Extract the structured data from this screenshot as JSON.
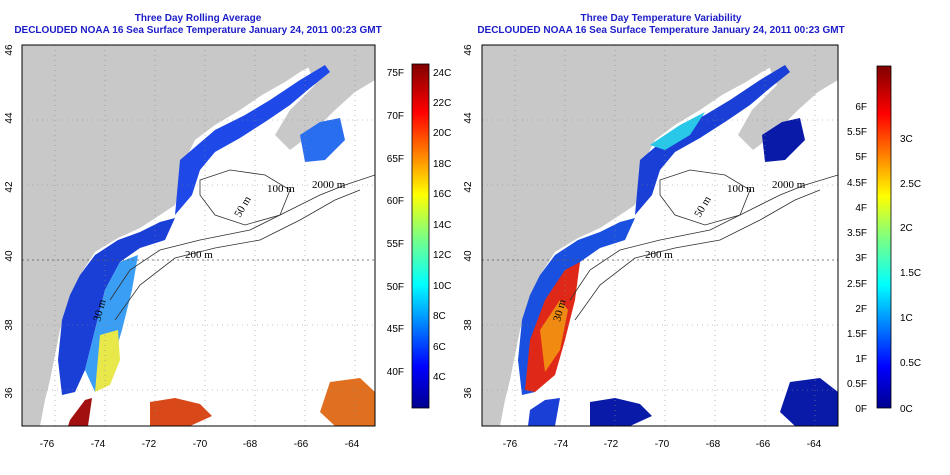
{
  "panels": [
    {
      "title": "Three Day Rolling Average",
      "subtitle": "DECLOUDED NOAA 16 Sea Surface Temperature January 24, 2011 00:23 GMT",
      "x_ticks": [
        "-76",
        "-74",
        "-72",
        "-70",
        "-68",
        "-66",
        "-64"
      ],
      "y_ticks": [
        "36",
        "38",
        "40",
        "42",
        "44",
        "46"
      ],
      "contour_labels": [
        "30 m",
        "100 m",
        "200 m",
        "2000 m",
        "50 m"
      ],
      "colorbar": {
        "left_labels": [
          "75F",
          "70F",
          "65F",
          "60F",
          "55F",
          "50F",
          "45F",
          "40F"
        ],
        "right_labels": [
          "24C",
          "22C",
          "20C",
          "18C",
          "16C",
          "14C",
          "12C",
          "10C",
          "8C",
          "6C",
          "4C"
        ]
      }
    },
    {
      "title": "Three Day Temperature Variability",
      "subtitle": "DECLOUDED NOAA 16 Sea Surface Temperature January 24, 2011 00:23 GMT",
      "x_ticks": [
        "-76",
        "-74",
        "-72",
        "-70",
        "-68",
        "-66",
        "-64"
      ],
      "y_ticks": [
        "36",
        "38",
        "40",
        "42",
        "44",
        "46"
      ],
      "contour_labels": [
        "30 m",
        "100 m",
        "200 m",
        "2000 m",
        "50 m"
      ],
      "colorbar": {
        "left_labels": [
          "6F",
          "5.5F",
          "5F",
          "4.5F",
          "4F",
          "3.5F",
          "3F",
          "2.5F",
          "2F",
          "1.5F",
          "1F",
          "0.5F",
          "0F"
        ],
        "right_labels": [
          "3C",
          "2.5C",
          "2C",
          "1.5C",
          "1C",
          "0.5C",
          "0C"
        ]
      }
    }
  ],
  "colors": {
    "title": "#1c1cc8",
    "land": "#c8c8c8",
    "ocean": "#ffffff"
  }
}
